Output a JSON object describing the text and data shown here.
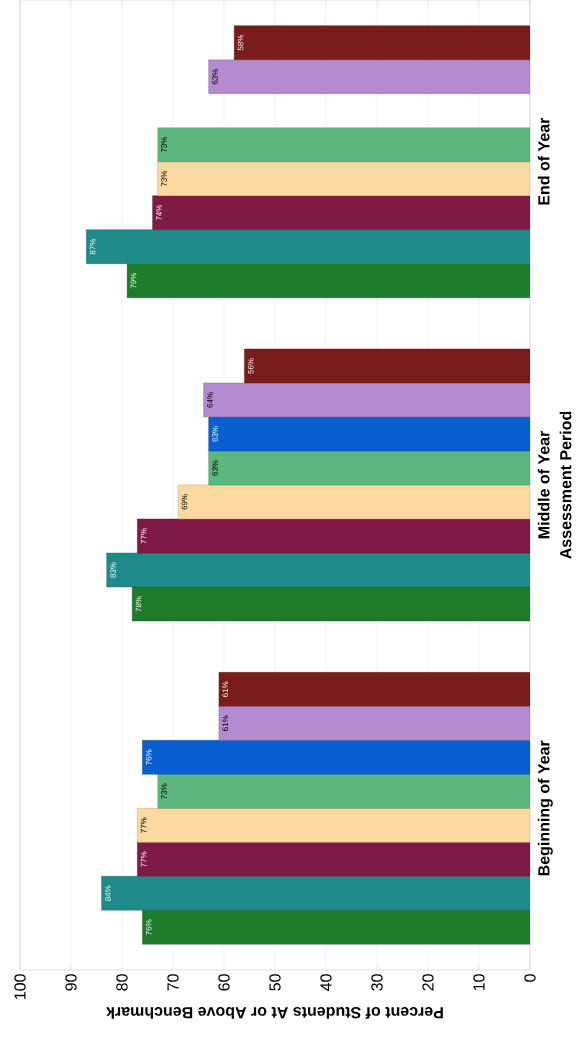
{
  "chart_data": {
    "type": "bar",
    "orientation": "horizontal",
    "xlabel": "Percent of Students At or Above Benchmark",
    "ylabel": "Assessment Period",
    "categories": [
      "End of Year",
      "Middle of Year",
      "Beginning of Year"
    ],
    "xlim": [
      100,
      0
    ],
    "xticks": [
      0,
      10,
      20,
      30,
      40,
      50,
      60,
      70,
      80,
      90,
      100
    ],
    "grid": "x",
    "series": [
      {
        "color": "#1e7b2a",
        "values": [
          79,
          78,
          76
        ],
        "value_labels": [
          "79%",
          "78%",
          "76%"
        ]
      },
      {
        "color": "#1f8a8a",
        "values": [
          87,
          83,
          84
        ],
        "value_labels": [
          "87%",
          "83%",
          "84%"
        ]
      },
      {
        "color": "#7f1a45",
        "values": [
          74,
          77,
          77
        ],
        "value_labels": [
          "74%",
          "77%",
          "77%"
        ]
      },
      {
        "color": "#fcd9a0",
        "values": [
          73,
          69,
          77
        ],
        "value_labels": [
          "73%",
          "69%",
          "77%"
        ]
      },
      {
        "color": "#5cb87e",
        "values": [
          73,
          63,
          73
        ],
        "value_labels": [
          "73%",
          "63%",
          "73%"
        ]
      },
      {
        "color": "#0a5fd0",
        "values": [
          null,
          63,
          76
        ],
        "value_labels": [
          null,
          "63%",
          "76%"
        ]
      },
      {
        "color": "#b48ad0",
        "values": [
          63,
          64,
          61
        ],
        "value_labels": [
          "63%",
          "64%",
          "61%"
        ]
      },
      {
        "color": "#7a1c1c",
        "values": [
          58,
          56,
          61
        ],
        "value_labels": [
          "58%",
          "56%",
          "61%"
        ]
      }
    ]
  }
}
